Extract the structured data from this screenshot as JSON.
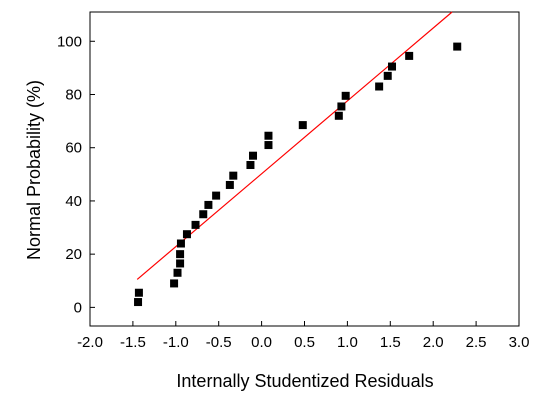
{
  "chart_data": {
    "type": "scatter",
    "title": "",
    "xlabel": "Internally Studentized Residuals",
    "ylabel": "Normal Probability (%)",
    "xlim": [
      -2.0,
      3.0
    ],
    "ylim": [
      -7,
      111
    ],
    "x_ticks": [
      -2.0,
      -1.5,
      -1.0,
      -0.5,
      0.0,
      0.5,
      1.0,
      1.5,
      2.0,
      2.5,
      3.0
    ],
    "x_tick_labels": [
      "-2.0",
      "-1.5",
      "-1.0",
      "-0.5",
      "0.0",
      "0.5",
      "1.0",
      "1.5",
      "2.0",
      "2.5",
      "3.0"
    ],
    "y_ticks": [
      0,
      20,
      40,
      60,
      80,
      100
    ],
    "y_tick_labels": [
      "0",
      "20",
      "40",
      "60",
      "80",
      "100"
    ],
    "grid": false,
    "legend": "none",
    "marker_color": "#000000",
    "line_color": "#ff0000",
    "points": [
      {
        "x": -1.44,
        "y": 2
      },
      {
        "x": -1.43,
        "y": 5.5
      },
      {
        "x": -1.02,
        "y": 9
      },
      {
        "x": -0.98,
        "y": 13
      },
      {
        "x": -0.95,
        "y": 16.5
      },
      {
        "x": -0.95,
        "y": 20
      },
      {
        "x": -0.94,
        "y": 24
      },
      {
        "x": -0.87,
        "y": 27.5
      },
      {
        "x": -0.77,
        "y": 31
      },
      {
        "x": -0.68,
        "y": 35
      },
      {
        "x": -0.62,
        "y": 38.5
      },
      {
        "x": -0.53,
        "y": 42
      },
      {
        "x": -0.37,
        "y": 46
      },
      {
        "x": -0.33,
        "y": 49.5
      },
      {
        "x": -0.13,
        "y": 53.5
      },
      {
        "x": -0.1,
        "y": 57
      },
      {
        "x": 0.08,
        "y": 61
      },
      {
        "x": 0.08,
        "y": 64.5
      },
      {
        "x": 0.48,
        "y": 68.5
      },
      {
        "x": 0.9,
        "y": 72
      },
      {
        "x": 0.93,
        "y": 75.5
      },
      {
        "x": 0.98,
        "y": 79.5
      },
      {
        "x": 1.37,
        "y": 83
      },
      {
        "x": 1.47,
        "y": 87
      },
      {
        "x": 1.52,
        "y": 90.5
      },
      {
        "x": 1.72,
        "y": 94.5
      },
      {
        "x": 2.28,
        "y": 98
      }
    ],
    "fit_line": {
      "x": [
        -1.45,
        2.22
      ],
      "y": [
        10.5,
        111
      ]
    }
  }
}
